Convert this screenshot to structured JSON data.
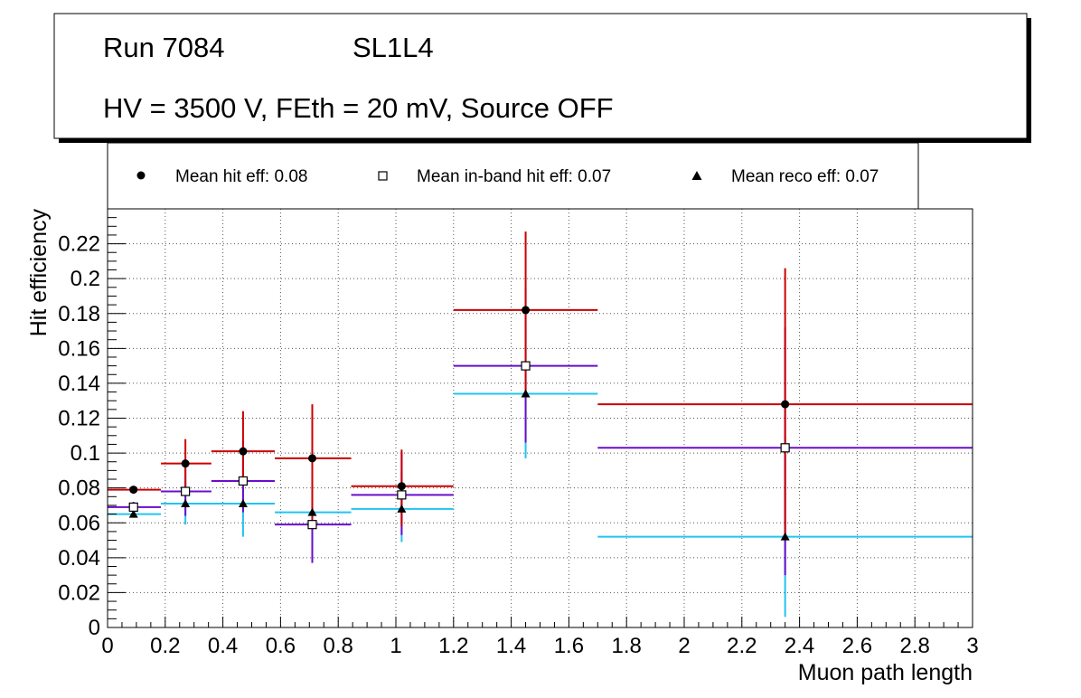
{
  "header": {
    "run_label": "Run 7084",
    "layer_label": "SL1L4",
    "settings_label": "HV = 3500 V, FEth = 20 mV, Source OFF"
  },
  "legend": {
    "entries": [
      {
        "marker": "filled-circle",
        "label": "Mean hit  eff: 0.08"
      },
      {
        "marker": "open-square",
        "label": "Mean in-band hit eff: 0.07"
      },
      {
        "marker": "filled-triangle",
        "label": "Mean reco eff: 0.07"
      }
    ]
  },
  "colors": {
    "hit": "#cc0000",
    "inband": "#6a0dcc",
    "reco": "#22c4f0",
    "axis": "#000000",
    "grid": "#555555"
  },
  "chart_data": {
    "type": "scatter",
    "title": "",
    "xlabel": "Muon path length",
    "ylabel": "Hit efficiency",
    "xlim": [
      0,
      3
    ],
    "ylim": [
      0,
      0.24
    ],
    "grid": true,
    "legend_position": "top",
    "x_ticks": [
      0,
      0.2,
      0.4,
      0.6,
      0.8,
      1,
      1.2,
      1.4,
      1.6,
      1.8,
      2,
      2.2,
      2.4,
      2.6,
      2.8,
      3
    ],
    "x_tick_labels": [
      "0",
      "0.2",
      "0.4",
      "0.6",
      "0.8",
      "1",
      "1.2",
      "1.4",
      "1.6",
      "1.8",
      "2",
      "2.2",
      "2.4",
      "2.6",
      "2.8",
      "3"
    ],
    "y_ticks": [
      0,
      0.02,
      0.04,
      0.06,
      0.08,
      0.1,
      0.12,
      0.14,
      0.16,
      0.18,
      0.2,
      0.22
    ],
    "y_tick_labels": [
      "0",
      "0.02",
      "0.04",
      "0.06",
      "0.08",
      "0.1",
      "0.12",
      "0.14",
      "0.16",
      "0.18",
      "0.2",
      "0.22"
    ],
    "bins": [
      {
        "xlow": 0.0,
        "xhigh": 0.185,
        "x": 0.09
      },
      {
        "xlow": 0.185,
        "xhigh": 0.36,
        "x": 0.27
      },
      {
        "xlow": 0.36,
        "xhigh": 0.58,
        "x": 0.47
      },
      {
        "xlow": 0.58,
        "xhigh": 0.845,
        "x": 0.71
      },
      {
        "xlow": 0.845,
        "xhigh": 1.2,
        "x": 1.02
      },
      {
        "xlow": 1.2,
        "xhigh": 1.7,
        "x": 1.45
      },
      {
        "xlow": 1.7,
        "xhigh": 3.0,
        "x": 2.35
      }
    ],
    "series": [
      {
        "name": "Mean hit  eff: 0.08",
        "marker": "filled-circle",
        "color_key": "hit",
        "values": [
          0.079,
          0.094,
          0.101,
          0.097,
          0.081,
          0.182,
          0.128
        ],
        "err_low": [
          0.079,
          0.08,
          0.083,
          0.061,
          0.058,
          0.132,
          0.05
        ],
        "err_high": [
          0.081,
          0.108,
          0.124,
          0.128,
          0.102,
          0.227,
          0.206
        ]
      },
      {
        "name": "Mean in-band hit eff: 0.07",
        "marker": "open-square",
        "color_key": "inband",
        "values": [
          0.069,
          0.078,
          0.084,
          0.059,
          0.076,
          0.15,
          0.103
        ],
        "err_low": [
          0.069,
          0.064,
          0.066,
          0.037,
          0.053,
          0.106,
          0.03
        ],
        "err_high": [
          0.072,
          0.092,
          0.107,
          0.089,
          0.1,
          0.195,
          0.172
        ]
      },
      {
        "name": "Mean reco eff: 0.07",
        "marker": "filled-triangle",
        "color_key": "reco",
        "values": [
          0.065,
          0.071,
          0.071,
          0.066,
          0.068,
          0.134,
          0.052
        ],
        "err_low": [
          0.065,
          0.059,
          0.052,
          0.045,
          0.049,
          0.097,
          0.006
        ],
        "err_high": [
          0.066,
          0.084,
          0.091,
          0.089,
          0.089,
          0.172,
          0.11
        ]
      }
    ]
  }
}
